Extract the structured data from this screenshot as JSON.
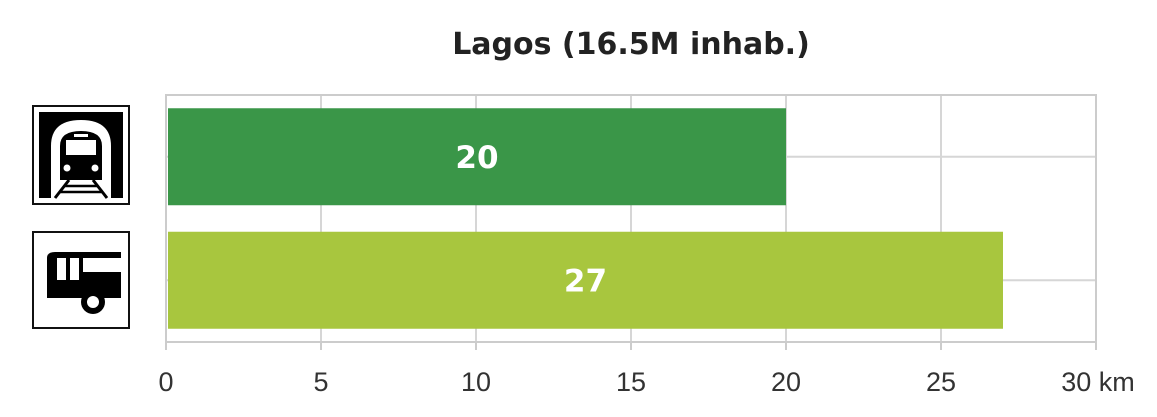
{
  "chart_data": {
    "type": "bar",
    "orientation": "horizontal",
    "title": "Lagos (16.5M inhab.)",
    "categories": [
      "metro-icon",
      "bus-icon"
    ],
    "values": [
      20,
      27
    ],
    "value_labels": [
      "20",
      "27"
    ],
    "colors": [
      "#3a9648",
      "#a8c63e"
    ],
    "xlim": [
      0,
      30
    ],
    "xticks": [
      0,
      5,
      10,
      15,
      20,
      25,
      30
    ],
    "xtick_labels": [
      "0",
      "5",
      "10",
      "15",
      "20",
      "25",
      "30 km"
    ],
    "grid": true,
    "legend": "none"
  }
}
